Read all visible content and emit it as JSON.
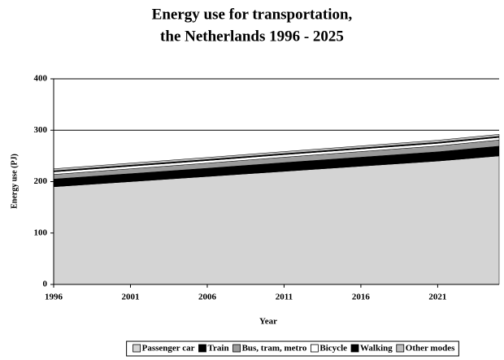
{
  "chart_data": {
    "type": "stacked-area",
    "title": [
      "Energy use for transportation,",
      "the Netherlands 1996 - 2025"
    ],
    "xlabel": "Year",
    "ylabel": "Energy use (PJ)",
    "x": [
      1996,
      2001,
      2006,
      2011,
      2016,
      2021,
      2025
    ],
    "series": [
      {
        "name": "Passenger car",
        "color": "#d4d4d4",
        "values": [
          190,
          200,
          210,
          220,
          230,
          240,
          250
        ]
      },
      {
        "name": "Train",
        "color": "#000000",
        "values": [
          15,
          15.5,
          16,
          17,
          17.5,
          18,
          19
        ]
      },
      {
        "name": "Bus, tram, metro",
        "color": "#9a9a9a",
        "values": [
          9,
          9.5,
          10,
          10.5,
          11,
          11.5,
          12
        ]
      },
      {
        "name": "Bicycle",
        "color": "#ffffff",
        "values": [
          5,
          5,
          5,
          5,
          5,
          5,
          5
        ]
      },
      {
        "name": "Walking",
        "color": "#000000",
        "values": [
          2,
          2,
          2,
          2,
          2,
          2,
          2
        ]
      },
      {
        "name": "Other modes",
        "color": "#bdbdbd",
        "values": [
          4,
          4,
          4,
          4,
          4,
          4,
          4
        ]
      }
    ],
    "xlim": [
      1996,
      2025
    ],
    "xticks": [
      1996,
      2001,
      2006,
      2011,
      2016,
      2021
    ],
    "ylim": [
      0,
      400
    ],
    "yticks": [
      0,
      100,
      200,
      300,
      400
    ],
    "grid": true,
    "legend": "bottom"
  }
}
